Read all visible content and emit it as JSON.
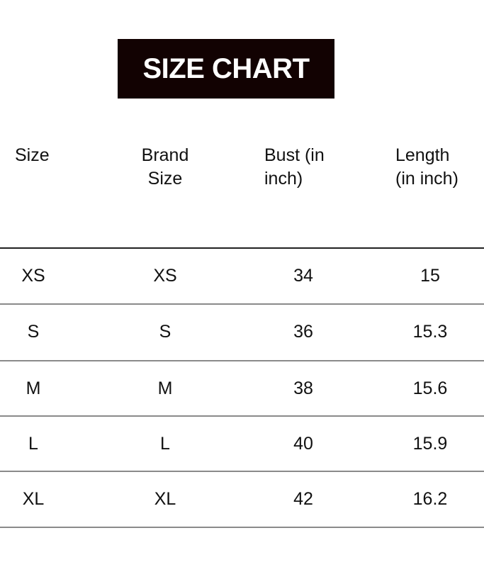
{
  "title": "SIZE CHART",
  "headers": [
    {
      "line1": "Size",
      "line2": ""
    },
    {
      "line1": "Brand",
      "line2": "Size"
    },
    {
      "line1": "Bust (in",
      "line2": "inch)"
    },
    {
      "line1": "Length",
      "line2": "(in inch)"
    }
  ],
  "rows": [
    [
      "XS",
      "XS",
      "34",
      "15"
    ],
    [
      "S",
      "S",
      "36",
      "15.3"
    ],
    [
      "M",
      "M",
      "38",
      "15.6"
    ],
    [
      "L",
      "L",
      "40",
      "15.9"
    ],
    [
      "XL",
      "XL",
      "42",
      "16.2"
    ]
  ]
}
